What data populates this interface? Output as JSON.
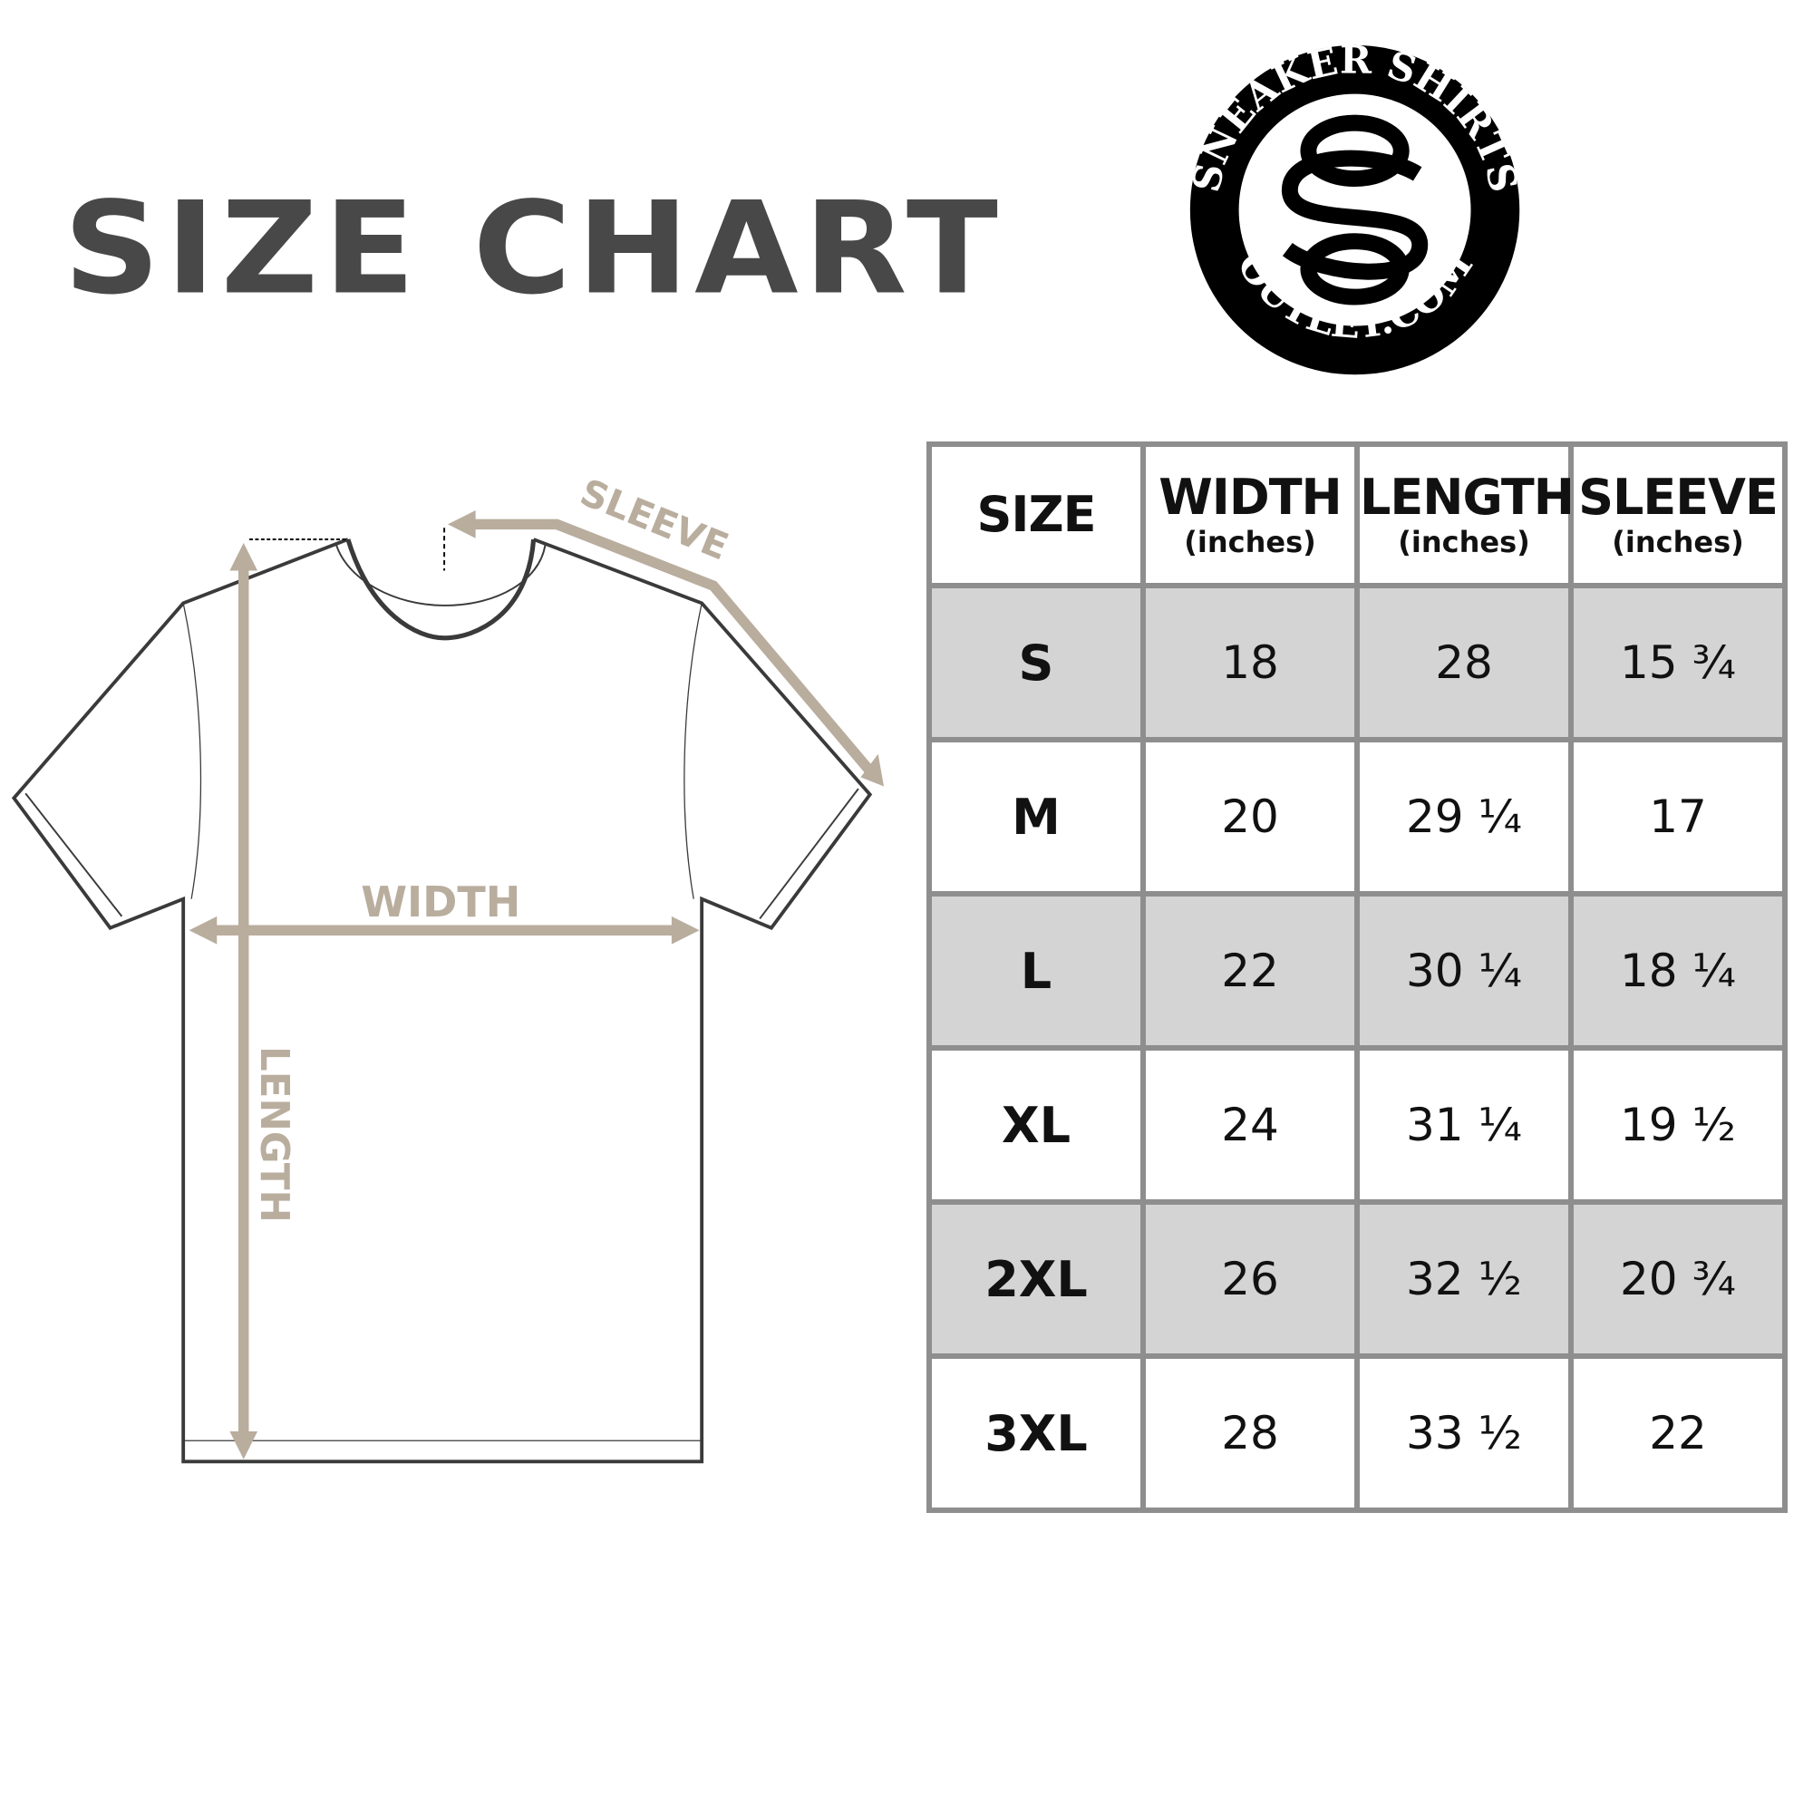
{
  "title": "SIZE CHART",
  "logo": {
    "top_text": "SNEAKER SHIRTS",
    "bottom_text": "OUTLET.COM",
    "monogram": "SO"
  },
  "diagram": {
    "sleeve_label": "SLEEVE",
    "width_label": "WIDTH",
    "length_label": "LENGTH",
    "arrow_color": "#b9ad9e"
  },
  "table": {
    "headers": [
      {
        "label": "SIZE",
        "unit": ""
      },
      {
        "label": "WIDTH",
        "unit": "(inches)"
      },
      {
        "label": "LENGTH",
        "unit": "(inches)"
      },
      {
        "label": "SLEEVE",
        "unit": "(inches)"
      }
    ],
    "rows": [
      [
        "S",
        "18",
        "28",
        "15 ¾"
      ],
      [
        "M",
        "20",
        "29 ¼",
        "17"
      ],
      [
        "L",
        "22",
        "30 ¼",
        "18 ¼"
      ],
      [
        "XL",
        "24",
        "31 ¼",
        "19 ½"
      ],
      [
        "2XL",
        "26",
        "32 ½",
        "20 ¾"
      ],
      [
        "3XL",
        "28",
        "33 ½",
        "22"
      ]
    ]
  }
}
